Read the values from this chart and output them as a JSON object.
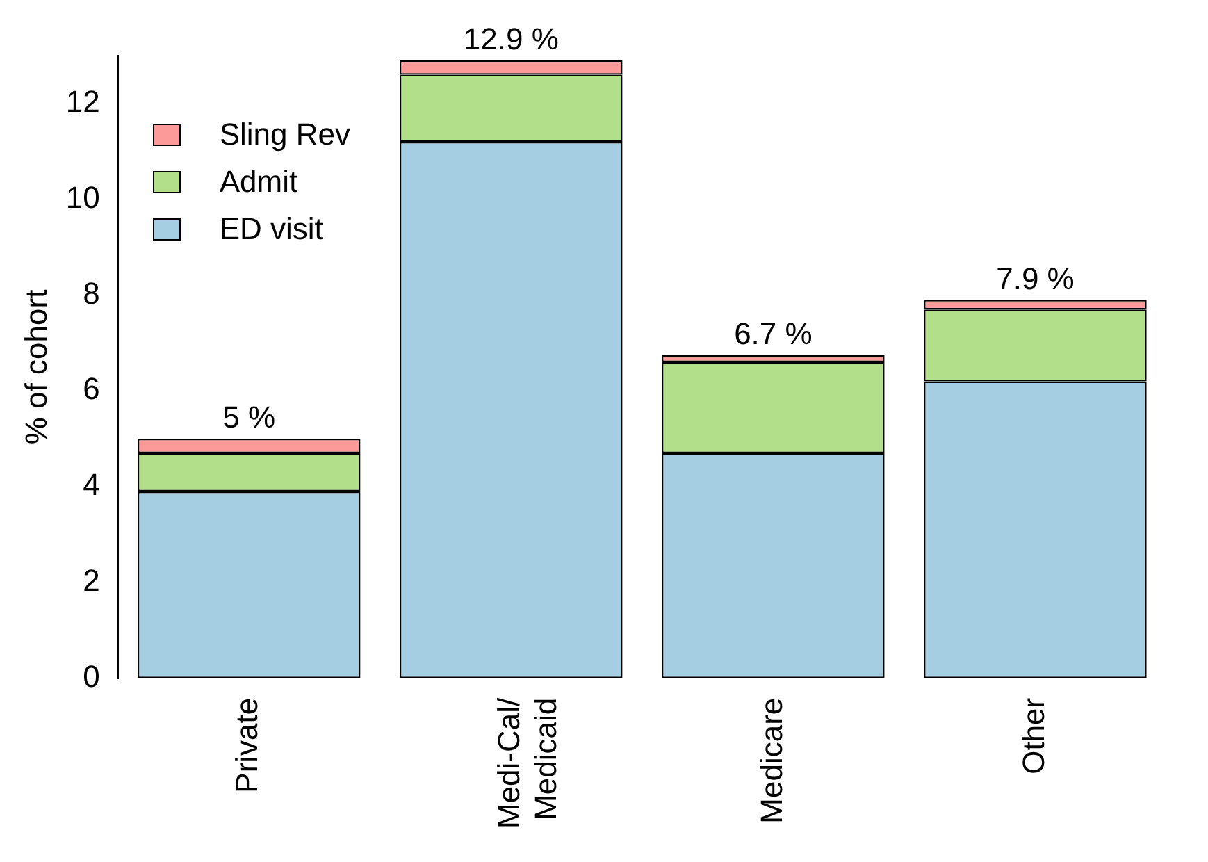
{
  "chart_data": {
    "type": "bar",
    "stacked": true,
    "ylabel": "% of cohort",
    "categories": [
      "Private",
      "Medi-Cal/\nMedicaid",
      "Medicare",
      "Other"
    ],
    "series": [
      {
        "name": "ED visit",
        "color": "#a6cee3",
        "values": [
          3.9,
          11.2,
          4.7,
          6.2
        ]
      },
      {
        "name": "Admit",
        "color": "#b2df8a",
        "values": [
          0.8,
          1.4,
          1.9,
          1.5
        ]
      },
      {
        "name": "Sling Rev",
        "color": "#fb9a99",
        "values": [
          0.3,
          0.3,
          0.15,
          0.2
        ]
      }
    ],
    "totals": [
      "5 %",
      "12.9 %",
      "6.7 %",
      "7.9 %"
    ],
    "ylim": [
      0,
      13
    ],
    "yticks": [
      0,
      2,
      4,
      6,
      8,
      10,
      12
    ],
    "grid": false,
    "legend": "top left"
  }
}
